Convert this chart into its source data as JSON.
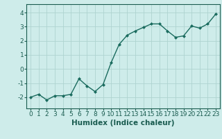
{
  "x": [
    0,
    1,
    2,
    3,
    4,
    5,
    6,
    7,
    8,
    9,
    10,
    11,
    12,
    13,
    14,
    15,
    16,
    17,
    18,
    19,
    20,
    21,
    22,
    23
  ],
  "y": [
    -2.0,
    -1.8,
    -2.2,
    -1.9,
    -1.9,
    -1.8,
    -0.7,
    -1.2,
    -1.6,
    -1.1,
    0.45,
    1.75,
    2.4,
    2.7,
    2.95,
    3.2,
    3.2,
    2.7,
    2.25,
    2.35,
    3.05,
    2.9,
    3.2,
    3.9
  ],
  "xlabel": "Humidex (Indice chaleur)",
  "ylim": [
    -2.8,
    4.6
  ],
  "xlim": [
    -0.5,
    23.5
  ],
  "yticks": [
    -2,
    -1,
    0,
    1,
    2,
    3,
    4
  ],
  "xticks": [
    0,
    1,
    2,
    3,
    4,
    5,
    6,
    7,
    8,
    9,
    10,
    11,
    12,
    13,
    14,
    15,
    16,
    17,
    18,
    19,
    20,
    21,
    22,
    23
  ],
  "line_color": "#1a6b5e",
  "marker": "D",
  "marker_size": 2.0,
  "line_width": 1.0,
  "bg_color": "#ceecea",
  "grid_color": "#aed4d0",
  "xlabel_fontsize": 7.5,
  "tick_fontsize": 6.5,
  "tick_color": "#1a5c50",
  "xlabel_color": "#1a5c50",
  "spine_color": "#1a5c50"
}
